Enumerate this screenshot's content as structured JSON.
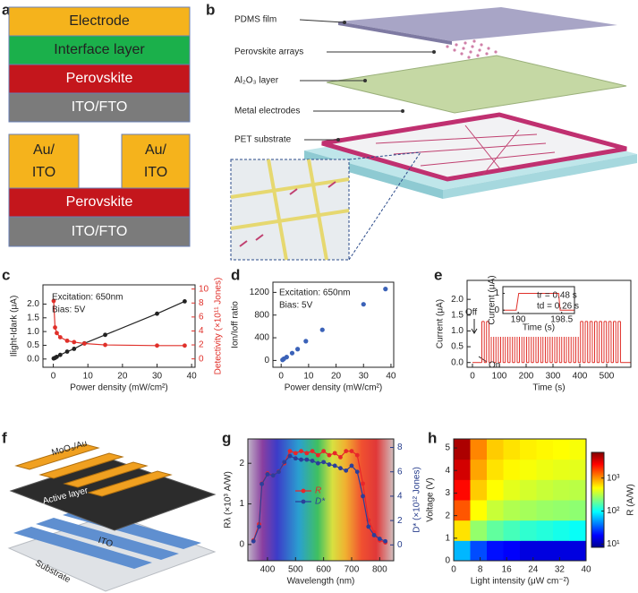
{
  "panel_labels": [
    "a",
    "b",
    "c",
    "d",
    "e",
    "f",
    "g",
    "h"
  ],
  "diagram_a": {
    "stack1": [
      "Electrode",
      "Interface layer",
      "Perovskite",
      "ITO/FTO"
    ],
    "stack2": {
      "left_electrode": [
        "Au/",
        "ITO"
      ],
      "right_electrode": [
        "Au/",
        "ITO"
      ],
      "layers": [
        "Perovskite",
        "ITO/FTO"
      ]
    }
  },
  "diagram_b": {
    "labels": [
      "PDMS film",
      "Perovskite arrays",
      "Al₂O₃ layer",
      "Metal electrodes",
      "PET substrate"
    ]
  },
  "diagram_f": {
    "labels": [
      "MoO₃/Au",
      "Active layer",
      "ITO",
      "Substrate"
    ]
  },
  "chart_data": [
    {
      "type": "line",
      "annotations": [
        "Excitation: 650nm",
        "Bias: 5V"
      ],
      "xlabel": "Power density (mW/cm²)",
      "ylabel": "Ilight-Idark (μA)",
      "y2label": "Detectivity (×10¹¹ Jones)",
      "xlim": [
        -3,
        41
      ],
      "xticks": [
        0,
        10,
        20,
        30,
        40
      ],
      "ylim": [
        -0.3,
        2.7
      ],
      "yticks": [
        {
          "value": 0,
          "label": "0.0"
        },
        {
          "value": 0.5,
          "label": "0.5"
        },
        {
          "value": 1,
          "label": "1.0"
        },
        {
          "value": 1.5,
          "label": "1.5"
        },
        {
          "value": 2,
          "label": "2.0"
        }
      ],
      "y2lim": [
        -1.2,
        10.6
      ],
      "y2ticks": [
        0,
        2,
        4,
        6,
        8,
        10
      ],
      "x": [
        0.1,
        0.5,
        1,
        2,
        4,
        6,
        9,
        15,
        30,
        38
      ],
      "series": [
        {
          "color": "#222222",
          "values": [
            0.02,
            0.04,
            0.08,
            0.15,
            0.27,
            0.37,
            0.57,
            0.88,
            1.65,
            2.1
          ]
        },
        {
          "color": "#e0302a",
          "axis": "y2",
          "values": [
            8.3,
            4.5,
            3.7,
            3.1,
            2.6,
            2.4,
            2.2,
            2.0,
            1.9,
            1.9
          ]
        }
      ]
    },
    {
      "type": "scatter",
      "annotations": [
        "Excitation: 650nm",
        "Bias: 5V"
      ],
      "xlabel": "Power density (mW/cm²)",
      "ylabel": "Ion/Ioff ratio",
      "xlim": [
        -3,
        41
      ],
      "xticks": [
        0,
        10,
        20,
        30,
        40
      ],
      "ylim": [
        -120,
        1380
      ],
      "yticks": [
        0,
        400,
        800,
        1200
      ],
      "x": [
        0.5,
        1,
        2,
        4,
        6,
        9,
        15,
        30,
        38
      ],
      "values": [
        10,
        30,
        60,
        130,
        200,
        340,
        540,
        990,
        1260
      ],
      "color": "#3b62b8"
    },
    {
      "type": "step",
      "annotations": [
        "Off",
        "On"
      ],
      "xlabel": "Time (s)",
      "ylabel": "Current (μA)",
      "xlim": [
        -20,
        590
      ],
      "xticks": [
        0,
        100,
        200,
        300,
        400,
        500
      ],
      "ylim": [
        -0.15,
        2.6
      ],
      "yticks": [
        {
          "value": 0,
          "label": "0.0"
        },
        {
          "value": 0.5,
          "label": "0.5"
        },
        {
          "value": 1,
          "label": "1.0"
        },
        {
          "value": 1.5,
          "label": "1.5"
        },
        {
          "value": 2,
          "label": "2.0"
        }
      ],
      "x": [
        0,
        35,
        44,
        52.5,
        61.5,
        70,
        79,
        87.5,
        96.5,
        105,
        114,
        122.5,
        131.5,
        140,
        149,
        157.5,
        166.5,
        175,
        184,
        192.5,
        201.5,
        210,
        219,
        227.5,
        236.5,
        245,
        254,
        262.5,
        271.5,
        280,
        289,
        297.5,
        306.5,
        315,
        324,
        332.5,
        341.5,
        350,
        359,
        367.5,
        376.5,
        385,
        394,
        402.5,
        411.5,
        420,
        429,
        437.5,
        446.5,
        455,
        464,
        472.5,
        481.5,
        490,
        499,
        507.5,
        516.5,
        525,
        534,
        542.5,
        551.5
      ],
      "values": [
        0,
        1.3,
        0,
        1.3,
        0,
        1.3,
        0,
        1.3,
        0,
        1.3,
        0,
        1.3,
        0,
        1.3,
        0,
        1.3,
        0,
        1.3,
        0,
        1.3,
        0,
        1.3,
        0,
        1.3,
        0,
        1.3,
        0,
        1.3,
        0,
        1.3,
        0,
        1.3,
        0,
        1.3,
        0,
        1.3,
        0,
        1.3,
        0,
        1.3,
        0,
        1.3,
        0,
        1.3,
        0,
        1.3,
        0,
        1.3,
        0,
        1.3,
        0,
        1.3,
        0,
        1.3,
        0,
        1.3,
        0,
        1.3,
        0,
        1.3,
        0
      ],
      "color": "#e0302a"
    },
    {
      "type": "line",
      "annotations": [
        "tr = 0.48 s",
        "td = 0.26 s"
      ],
      "xlabel": "Time (s)",
      "ylabel": "Current (μA)",
      "xlim": [
        187,
        201
      ],
      "xticks": [
        190,
        198.5
      ],
      "ylim": [
        -0.2,
        1.4
      ],
      "yticks": [
        0,
        1
      ],
      "x": [
        187,
        189.6,
        190.1,
        197.9,
        198.2,
        201
      ],
      "values": [
        0,
        0,
        1,
        1,
        0,
        0
      ],
      "color": "#e0302a"
    },
    {
      "type": "line",
      "xlabel": "Wavelength (nm)",
      "ylabel": "Rλ (×10³ A/W)",
      "y2label": "D* (×10¹² Jones)",
      "legend": "center",
      "xlim": [
        330,
        850
      ],
      "xticks": [
        400,
        500,
        600,
        700,
        800
      ],
      "ylim": [
        -0.4,
        2.6
      ],
      "yticks": [
        0,
        1,
        2
      ],
      "y2lim": [
        -1.3,
        8.7
      ],
      "y2ticks": [
        0,
        2,
        4,
        6,
        8
      ],
      "x": [
        350,
        370,
        380,
        400,
        420,
        440,
        460,
        480,
        500,
        520,
        540,
        560,
        580,
        600,
        620,
        640,
        660,
        680,
        700,
        720,
        740,
        760,
        780,
        800,
        820
      ],
      "series": [
        {
          "name": "R",
          "color": "#e8262a",
          "values": [
            0.1,
            0.5,
            1.5,
            1.75,
            1.7,
            1.8,
            2.0,
            2.3,
            2.25,
            2.3,
            2.25,
            2.3,
            2.2,
            2.3,
            2.2,
            2.25,
            2.15,
            2.3,
            2.3,
            2.2,
            1.5,
            0.6,
            0.3,
            0.1,
            0.05
          ]
        },
        {
          "name": "D*",
          "color": "#2b3f9a",
          "axis": "y2",
          "values": [
            0.3,
            1.5,
            5,
            5.8,
            5.7,
            6.0,
            6.8,
            7.3,
            7.1,
            7.0,
            7.0,
            6.9,
            6.7,
            6.8,
            6.6,
            6.5,
            6.3,
            6.1,
            6.5,
            6.0,
            4,
            1.5,
            0.8,
            0.5,
            0.3
          ]
        }
      ]
    },
    {
      "type": "heatmap",
      "xlabel": "Light intensity (μW cm⁻²)",
      "ylabel": "Voltage (V)",
      "colorbar_label": "R (A/W)",
      "colormap": "jet",
      "log_color": true,
      "xlim": [
        0,
        40
      ],
      "xticks": [
        0,
        8,
        16,
        24,
        32,
        40
      ],
      "ylim": [
        0,
        5.4
      ],
      "yticks": [
        0,
        1,
        2,
        3,
        4,
        5
      ],
      "x": [
        2.5,
        7.5,
        12.5,
        17.5,
        22.5,
        27.5,
        32.5,
        37.5
      ],
      "y": [
        0.45,
        1.35,
        2.25,
        3.15,
        4.05,
        4.95
      ],
      "z": [
        [
          60,
          30,
          20,
          18,
          15,
          15,
          15,
          15
        ],
        [
          600,
          250,
          180,
          150,
          130,
          120,
          110,
          100
        ],
        [
          1500,
          500,
          350,
          300,
          280,
          260,
          250,
          240
        ],
        [
          2500,
          700,
          500,
          420,
          380,
          350,
          330,
          320
        ],
        [
          3500,
          900,
          600,
          520,
          480,
          450,
          430,
          420
        ],
        [
          4500,
          1100,
          700,
          600,
          550,
          520,
          500,
          480
        ]
      ],
      "clim": [
        8,
        6000
      ],
      "cticks": [
        {
          "value": 10,
          "label": "10¹"
        },
        {
          "value": 100,
          "label": "10²"
        },
        {
          "value": 1000,
          "label": "10³"
        }
      ]
    }
  ]
}
